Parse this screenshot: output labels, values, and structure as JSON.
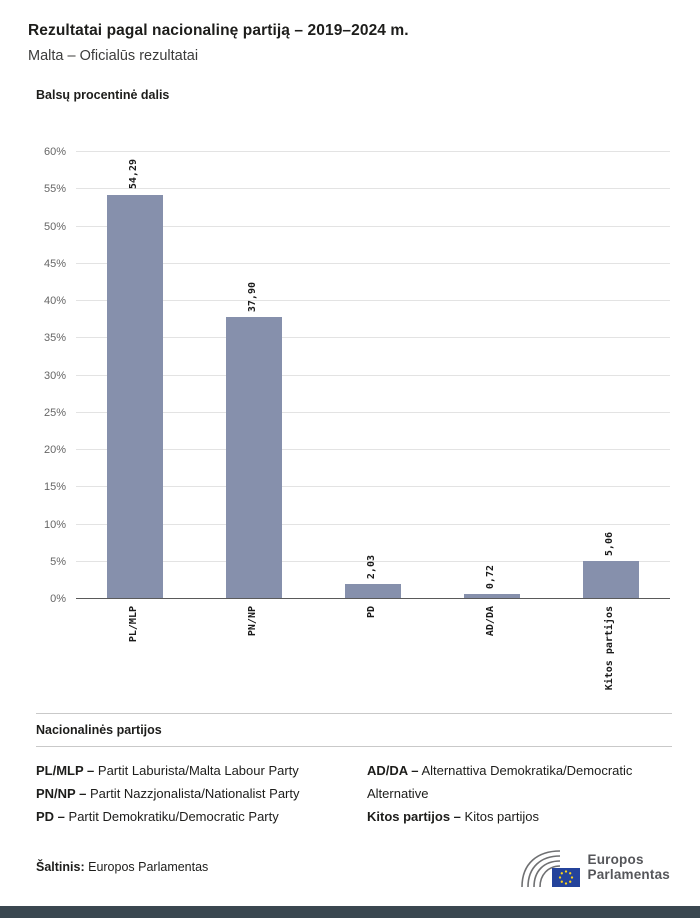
{
  "header": {
    "title": "Rezultatai pagal nacionalinę partiją – 2019–2024 m.",
    "subtitle": "Malta – Oficialūs rezultatai"
  },
  "chart_data": {
    "type": "bar",
    "title": "Balsų procentinė dalis",
    "categories": [
      "PL/MLP",
      "PN/NP",
      "PD",
      "AD/DA",
      "Kitos partijos"
    ],
    "values": [
      54.29,
      37.9,
      2.03,
      0.72,
      5.06
    ],
    "value_labels": [
      "54,29",
      "37,90",
      "2,03",
      "0,72",
      "5,06"
    ],
    "xlabel": "",
    "ylabel": "",
    "ylim": [
      0,
      60
    ],
    "ytick_step": 5,
    "ytick_labels": [
      "0%",
      "5%",
      "10%",
      "15%",
      "20%",
      "25%",
      "30%",
      "35%",
      "40%",
      "45%",
      "50%",
      "55%",
      "60%"
    ],
    "grid": true,
    "legend_position": "none",
    "bar_color": "#8690AC"
  },
  "legend": {
    "heading": "Nacionalinės partijos",
    "items": [
      {
        "term": "PL/MLP –",
        "definition": "Partit Laburista/Malta Labour Party"
      },
      {
        "term": "PN/NP –",
        "definition": "Partit Nazzjonalista/Nationalist Party"
      },
      {
        "term": "PD –",
        "definition": "Partit Demokratiku/Democratic Party"
      },
      {
        "term": "AD/DA –",
        "definition": "Alternattiva Demokratika/Democratic Alternative"
      },
      {
        "term": "Kitos partijos –",
        "definition": "Kitos partijos"
      }
    ]
  },
  "footer": {
    "source_label": "Šaltinis:",
    "source_value": "Europos Parlamentas",
    "logo_line1": "Europos",
    "logo_line2": "Parlamentas",
    "strip_color": "#3A4750",
    "flag_blue": "#24439B",
    "star_yellow": "#FFD617"
  }
}
